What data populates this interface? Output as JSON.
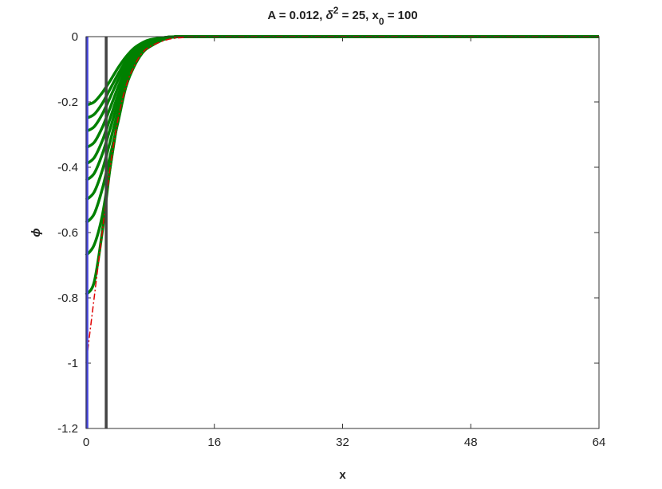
{
  "chart_data": {
    "type": "line",
    "title": [
      {
        "text": "A = 0.012,  "
      },
      {
        "text": "δ",
        "italic": true
      },
      {
        "text": "2",
        "sup": true
      },
      {
        "text": " = 25,   x"
      },
      {
        "text": "0",
        "sub": true
      },
      {
        "text": " = 100"
      }
    ],
    "xlabel": "x",
    "ylabel": "ϕ",
    "xlim": [
      0,
      64
    ],
    "ylim": [
      -1.2,
      0
    ],
    "xticks": [
      0,
      16,
      32,
      48,
      64
    ],
    "yticks": [
      0,
      -0.2,
      -0.4,
      -0.6,
      -0.8,
      -1,
      -1.2
    ],
    "x": [
      0,
      1,
      2,
      3,
      4,
      5,
      6,
      7,
      8,
      10,
      12,
      16,
      64
    ],
    "series": [
      {
        "color": "#008000",
        "values": [
          -0.21,
          -0.2,
          -0.172,
          -0.135,
          -0.095,
          -0.061,
          -0.035,
          -0.019,
          -0.009,
          -0.002,
          0,
          0,
          0
        ]
      },
      {
        "color": "#008000",
        "values": [
          -0.25,
          -0.238,
          -0.205,
          -0.16,
          -0.114,
          -0.073,
          -0.042,
          -0.022,
          -0.011,
          -0.002,
          0,
          0,
          0
        ]
      },
      {
        "color": "#008000",
        "values": [
          -0.29,
          -0.276,
          -0.238,
          -0.186,
          -0.132,
          -0.084,
          -0.049,
          -0.026,
          -0.012,
          -0.002,
          0,
          0,
          0
        ]
      },
      {
        "color": "#008000",
        "values": [
          -0.34,
          -0.324,
          -0.279,
          -0.218,
          -0.154,
          -0.099,
          -0.057,
          -0.03,
          -0.014,
          -0.002,
          0,
          0,
          0
        ]
      },
      {
        "color": "#008000",
        "values": [
          -0.39,
          -0.371,
          -0.32,
          -0.25,
          -0.177,
          -0.113,
          -0.066,
          -0.035,
          -0.016,
          -0.003,
          0,
          0,
          0
        ]
      },
      {
        "color": "#008000",
        "values": [
          -0.44,
          -0.419,
          -0.361,
          -0.282,
          -0.2,
          -0.128,
          -0.074,
          -0.039,
          -0.018,
          -0.003,
          0,
          0,
          0
        ]
      },
      {
        "color": "#008000",
        "values": [
          -0.5,
          -0.476,
          -0.411,
          -0.321,
          -0.227,
          -0.146,
          -0.085,
          -0.045,
          -0.021,
          -0.004,
          0,
          0,
          0
        ]
      },
      {
        "color": "#008000",
        "values": [
          -0.57,
          -0.543,
          -0.468,
          -0.365,
          -0.259,
          -0.15,
          -0.09,
          -0.05,
          -0.024,
          -0.004,
          0,
          0,
          0
        ]
      },
      {
        "color": "#008000",
        "values": [
          -0.67,
          -0.638,
          -0.55,
          -0.4,
          -0.25,
          -0.15,
          -0.09,
          -0.05,
          -0.028,
          -0.005,
          0,
          0,
          0
        ]
      },
      {
        "color": "#008000",
        "values": [
          -0.79,
          -0.752,
          -0.6,
          -0.4,
          -0.25,
          -0.15,
          -0.09,
          -0.05,
          -0.03,
          -0.006,
          0,
          0,
          0
        ]
      },
      {
        "color": "#e00000",
        "dash": true,
        "values": [
          -1,
          -0.8,
          -0.6,
          -0.4,
          -0.25,
          -0.15,
          -0.09,
          -0.05,
          -0.03,
          -0.01,
          -0.003,
          0,
          0
        ]
      }
    ],
    "vlines": [
      {
        "x": 0.1,
        "color": "#4444dd"
      },
      {
        "x": 2.5,
        "color": "#444444"
      }
    ]
  }
}
